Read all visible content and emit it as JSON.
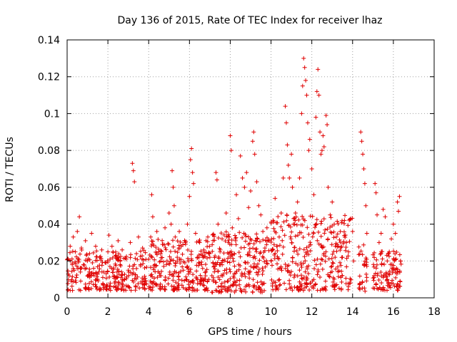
{
  "chart_data": {
    "type": "scatter",
    "title": "Day 136 of 2015, Rate Of TEC Index for receiver lhaz",
    "xlabel": "GPS time / hours",
    "ylabel": "ROTI / TECUs",
    "xlim": [
      0,
      18
    ],
    "ylim": [
      0,
      0.14
    ],
    "xticks": [
      "0",
      "2",
      "4",
      "6",
      "8",
      "10",
      "12",
      "14",
      "16",
      "18"
    ],
    "yticks": [
      "0",
      "0.02",
      "0.04",
      "0.06",
      "0.08",
      "0.1",
      "0.12",
      "0.14"
    ],
    "grid": true,
    "marker": "+",
    "color": "#e00000",
    "series": [
      {
        "name": "ROTI",
        "points": [
          [
            0.05,
            0.021
          ],
          [
            0.1,
            0.012
          ],
          [
            0.15,
            0.028
          ],
          [
            0.2,
            0.009
          ],
          [
            0.25,
            0.018
          ],
          [
            0.3,
            0.033
          ],
          [
            0.35,
            0.015
          ],
          [
            0.4,
            0.025
          ],
          [
            0.45,
            0.011
          ],
          [
            0.5,
            0.036
          ],
          [
            0.55,
            0.02
          ],
          [
            0.6,
            0.044
          ],
          [
            0.65,
            0.014
          ],
          [
            0.7,
            0.027
          ],
          [
            0.8,
            0.018
          ],
          [
            0.9,
            0.031
          ],
          [
            1.0,
            0.012
          ],
          [
            1.1,
            0.024
          ],
          [
            1.2,
            0.035
          ],
          [
            1.3,
            0.016
          ],
          [
            1.4,
            0.028
          ],
          [
            1.5,
            0.01
          ],
          [
            1.6,
            0.022
          ],
          [
            1.7,
            0.026
          ],
          [
            1.8,
            0.014
          ],
          [
            1.9,
            0.019
          ],
          [
            2.0,
            0.025
          ],
          [
            2.05,
            0.034
          ],
          [
            2.1,
            0.017
          ],
          [
            2.2,
            0.028
          ],
          [
            2.3,
            0.012
          ],
          [
            2.4,
            0.023
          ],
          [
            2.5,
            0.031
          ],
          [
            2.6,
            0.018
          ],
          [
            2.7,
            0.026
          ],
          [
            2.8,
            0.01
          ],
          [
            2.9,
            0.021
          ],
          [
            3.0,
            0.015
          ],
          [
            3.1,
            0.03
          ],
          [
            3.2,
            0.073
          ],
          [
            3.25,
            0.069
          ],
          [
            3.3,
            0.063
          ],
          [
            3.4,
            0.024
          ],
          [
            3.5,
            0.033
          ],
          [
            3.6,
            0.018
          ],
          [
            3.7,
            0.027
          ],
          [
            4.0,
            0.021
          ],
          [
            4.1,
            0.033
          ],
          [
            4.15,
            0.056
          ],
          [
            4.2,
            0.044
          ],
          [
            4.3,
            0.018
          ],
          [
            4.4,
            0.036
          ],
          [
            4.5,
            0.025
          ],
          [
            4.6,
            0.012
          ],
          [
            4.7,
            0.029
          ],
          [
            4.8,
            0.038
          ],
          [
            4.9,
            0.02
          ],
          [
            5.0,
            0.046
          ],
          [
            5.1,
            0.04
          ],
          [
            5.15,
            0.069
          ],
          [
            5.2,
            0.06
          ],
          [
            5.25,
            0.05
          ],
          [
            5.3,
            0.033
          ],
          [
            5.4,
            0.022
          ],
          [
            5.5,
            0.036
          ],
          [
            5.6,
            0.028
          ],
          [
            5.7,
            0.015
          ],
          [
            5.8,
            0.03
          ],
          [
            5.9,
            0.04
          ],
          [
            6.0,
            0.055
          ],
          [
            6.05,
            0.075
          ],
          [
            6.1,
            0.081
          ],
          [
            6.15,
            0.068
          ],
          [
            6.2,
            0.062
          ],
          [
            6.3,
            0.035
          ],
          [
            6.4,
            0.022
          ],
          [
            6.5,
            0.03
          ],
          [
            6.6,
            0.018
          ],
          [
            6.7,
            0.026
          ],
          [
            6.8,
            0.014
          ],
          [
            6.9,
            0.033
          ],
          [
            7.0,
            0.022
          ],
          [
            7.1,
            0.012
          ],
          [
            7.3,
            0.068
          ],
          [
            7.35,
            0.064
          ],
          [
            7.4,
            0.04
          ],
          [
            7.5,
            0.025
          ],
          [
            7.6,
            0.032
          ],
          [
            7.7,
            0.02
          ],
          [
            7.8,
            0.046
          ],
          [
            7.9,
            0.03
          ],
          [
            8.0,
            0.088
          ],
          [
            8.05,
            0.08
          ],
          [
            8.1,
            0.038
          ],
          [
            8.2,
            0.024
          ],
          [
            8.3,
            0.056
          ],
          [
            8.4,
            0.043
          ],
          [
            8.5,
            0.077
          ],
          [
            8.6,
            0.065
          ],
          [
            8.7,
            0.06
          ],
          [
            8.8,
            0.068
          ],
          [
            8.9,
            0.049
          ],
          [
            9.0,
            0.058
          ],
          [
            9.1,
            0.085
          ],
          [
            9.15,
            0.09
          ],
          [
            9.2,
            0.078
          ],
          [
            9.3,
            0.063
          ],
          [
            9.4,
            0.05
          ],
          [
            9.5,
            0.045
          ],
          [
            9.6,
            0.036
          ],
          [
            9.7,
            0.027
          ],
          [
            9.8,
            0.038
          ],
          [
            9.9,
            0.031
          ],
          [
            10.0,
            0.02
          ],
          [
            10.1,
            0.042
          ],
          [
            10.2,
            0.054
          ],
          [
            10.3,
            0.028
          ],
          [
            10.4,
            0.033
          ],
          [
            10.5,
            0.046
          ],
          [
            10.6,
            0.065
          ],
          [
            10.7,
            0.104
          ],
          [
            10.75,
            0.095
          ],
          [
            10.8,
            0.083
          ],
          [
            10.85,
            0.072
          ],
          [
            10.9,
            0.065
          ],
          [
            11.0,
            0.078
          ],
          [
            11.05,
            0.06
          ],
          [
            11.1,
            0.04
          ],
          [
            11.2,
            0.046
          ],
          [
            11.3,
            0.052
          ],
          [
            11.4,
            0.065
          ],
          [
            11.5,
            0.1
          ],
          [
            11.55,
            0.115
          ],
          [
            11.6,
            0.13
          ],
          [
            11.65,
            0.125
          ],
          [
            11.7,
            0.118
          ],
          [
            11.75,
            0.11
          ],
          [
            11.8,
            0.095
          ],
          [
            11.85,
            0.08
          ],
          [
            11.9,
            0.086
          ],
          [
            12.0,
            0.07
          ],
          [
            12.1,
            0.056
          ],
          [
            12.2,
            0.098
          ],
          [
            12.25,
            0.112
          ],
          [
            12.3,
            0.124
          ],
          [
            12.35,
            0.11
          ],
          [
            12.4,
            0.09
          ],
          [
            12.45,
            0.078
          ],
          [
            12.5,
            0.08
          ],
          [
            12.55,
            0.088
          ],
          [
            12.6,
            0.082
          ],
          [
            12.7,
            0.099
          ],
          [
            12.75,
            0.094
          ],
          [
            12.8,
            0.06
          ],
          [
            12.9,
            0.045
          ],
          [
            13.0,
            0.052
          ],
          [
            13.1,
            0.04
          ],
          [
            13.2,
            0.033
          ],
          [
            13.3,
            0.028
          ],
          [
            13.4,
            0.036
          ],
          [
            13.5,
            0.022
          ],
          [
            13.6,
            0.042
          ],
          [
            13.7,
            0.03
          ],
          [
            13.8,
            0.025
          ],
          [
            13.9,
            0.043
          ],
          [
            14.0,
            0.036
          ],
          [
            14.05,
            0.02
          ],
          [
            14.4,
            0.09
          ],
          [
            14.45,
            0.085
          ],
          [
            14.5,
            0.078
          ],
          [
            14.55,
            0.07
          ],
          [
            14.6,
            0.062
          ],
          [
            14.65,
            0.05
          ],
          [
            14.7,
            0.035
          ],
          [
            15.1,
            0.062
          ],
          [
            15.15,
            0.057
          ],
          [
            15.2,
            0.045
          ],
          [
            15.3,
            0.03
          ],
          [
            15.4,
            0.035
          ],
          [
            15.5,
            0.048
          ],
          [
            15.6,
            0.044
          ],
          [
            15.7,
            0.02
          ],
          [
            15.8,
            0.025
          ],
          [
            15.9,
            0.032
          ],
          [
            16.0,
            0.04
          ],
          [
            16.1,
            0.035
          ],
          [
            16.2,
            0.052
          ],
          [
            16.25,
            0.047
          ],
          [
            16.3,
            0.055
          ],
          [
            16.35,
            0.02
          ]
        ]
      }
    ],
    "density_bands": [
      {
        "x": [
          0.0,
          3.9
        ],
        "y": [
          0.004,
          0.026
        ],
        "n": 260
      },
      {
        "x": [
          4.0,
          7.0
        ],
        "y": [
          0.004,
          0.032
        ],
        "n": 240
      },
      {
        "x": [
          7.1,
          9.9
        ],
        "y": [
          0.003,
          0.036
        ],
        "n": 240
      },
      {
        "x": [
          10.0,
          14.0
        ],
        "y": [
          0.004,
          0.045
        ],
        "n": 320
      },
      {
        "x": [
          14.3,
          14.7
        ],
        "y": [
          0.003,
          0.03
        ],
        "n": 30
      },
      {
        "x": [
          15.0,
          16.4
        ],
        "y": [
          0.004,
          0.026
        ],
        "n": 110
      }
    ]
  }
}
